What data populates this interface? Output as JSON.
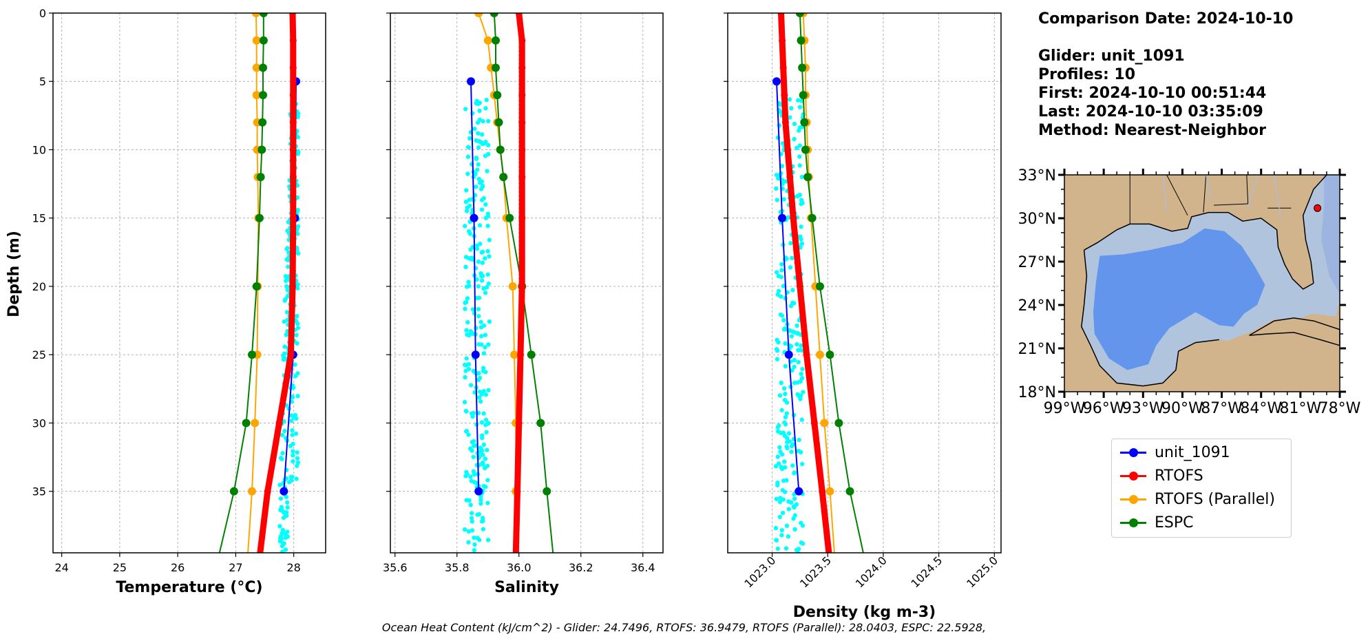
{
  "info": {
    "comparison_date": "Comparison Date: 2024-10-10",
    "glider": "Glider: unit_1091",
    "profiles": "Profiles: 10",
    "first": "First: 2024-10-10 00:51:44",
    "last": "Last: 2024-10-10 03:35:09",
    "method": "Method: Nearest-Neighbor"
  },
  "footer": "Ocean Heat Content (kJ/cm^2) - Glider: 24.7496,  RTOFS: 36.9479,  RTOFS (Parallel): 28.0403,  ESPC: 22.5928,",
  "legend": [
    {
      "label": "unit_1091",
      "color": "#0000ff"
    },
    {
      "label": "RTOFS",
      "color": "#ff0000"
    },
    {
      "label": "RTOFS (Parallel)",
      "color": "#ffa500"
    },
    {
      "label": "ESPC",
      "color": "#008000"
    }
  ],
  "map": {
    "lat_labels": [
      "33°N",
      "30°N",
      "27°N",
      "24°N",
      "21°N",
      "18°N"
    ],
    "lon_labels": [
      "99°W",
      "96°W",
      "93°W",
      "90°W",
      "87°W",
      "84°W",
      "81°W",
      "78°W"
    ],
    "land_color": "#d2b48c",
    "shelf_color": "#b0c4de",
    "deep_color": "#6495ed",
    "glider_location": {
      "lon": -79.7,
      "lat": 30.7
    }
  },
  "chart_data": [
    {
      "type": "line",
      "xlabel": "Temperature (°C)",
      "ylabel": "Depth (m)",
      "xlim": [
        23.85,
        28.55
      ],
      "ylim": [
        39.5,
        0
      ],
      "xticks": [
        24,
        25,
        26,
        27,
        28
      ],
      "yticks": [
        0,
        5,
        10,
        15,
        20,
        25,
        30,
        35
      ],
      "grid": true,
      "series": [
        {
          "name": "RTOFS",
          "style": "thick",
          "depth": [
            0,
            2,
            4,
            6,
            8,
            10,
            12,
            15,
            20,
            25,
            30,
            35,
            39.5
          ],
          "values": [
            27.98,
            27.99,
            27.99,
            27.99,
            27.99,
            27.99,
            27.99,
            27.99,
            27.98,
            27.95,
            27.75,
            27.55,
            27.42
          ]
        },
        {
          "name": "RTOFS (Parallel)",
          "depth": [
            0,
            2,
            4,
            6,
            8,
            10,
            12,
            15,
            20,
            25,
            30,
            35,
            39.5
          ],
          "values": [
            27.35,
            27.36,
            27.36,
            27.36,
            27.37,
            27.37,
            27.38,
            27.39,
            27.38,
            27.37,
            27.33,
            27.28,
            27.21
          ]
        },
        {
          "name": "ESPC",
          "depth": [
            0,
            2,
            4,
            6,
            8,
            10,
            12,
            15,
            20,
            25,
            30,
            35,
            39.5
          ],
          "values": [
            27.48,
            27.48,
            27.47,
            27.47,
            27.46,
            27.45,
            27.43,
            27.41,
            27.36,
            27.28,
            27.18,
            26.97,
            26.72
          ]
        },
        {
          "name": "unit_1091",
          "depth": [
            5,
            15,
            25,
            35
          ],
          "values": [
            28.04,
            28.02,
            27.99,
            27.83
          ]
        }
      ],
      "scatter": {
        "name": "glider raw",
        "color": "#00ffff",
        "x_range": [
          27.75,
          28.08
        ],
        "depth_range": [
          6.3,
          39.5
        ]
      }
    },
    {
      "type": "line",
      "xlabel": "Salinity",
      "ylabel": "",
      "xlim": [
        35.585,
        36.465
      ],
      "ylim": [
        39.5,
        0
      ],
      "xticks": [
        35.6,
        35.8,
        36.0,
        36.2,
        36.4
      ],
      "yticks": [
        0,
        5,
        10,
        15,
        20,
        25,
        30,
        35
      ],
      "grid": true,
      "series": [
        {
          "name": "RTOFS",
          "style": "thick",
          "depth": [
            0,
            2,
            4,
            6,
            8,
            10,
            12,
            15,
            20,
            25,
            30,
            35,
            39.5
          ],
          "values": [
            36.0,
            36.01,
            36.01,
            36.01,
            36.01,
            36.01,
            36.01,
            36.01,
            36.01,
            36.005,
            36.0,
            35.995,
            35.99
          ]
        },
        {
          "name": "RTOFS (Parallel)",
          "depth": [
            0,
            2,
            4,
            6,
            8,
            10,
            12,
            15,
            20,
            25,
            30,
            35,
            39.5
          ],
          "values": [
            35.87,
            35.9,
            35.91,
            35.92,
            35.93,
            35.94,
            35.95,
            35.96,
            35.98,
            35.985,
            35.99,
            35.99,
            35.985
          ]
        },
        {
          "name": "ESPC",
          "depth": [
            0,
            2,
            4,
            6,
            8,
            10,
            12,
            15,
            20,
            25,
            30,
            35,
            39.5
          ],
          "values": [
            35.92,
            35.925,
            35.925,
            35.93,
            35.935,
            35.94,
            35.95,
            35.97,
            36.01,
            36.04,
            36.07,
            36.09,
            36.11
          ]
        },
        {
          "name": "unit_1091",
          "depth": [
            5,
            15,
            25,
            35
          ],
          "values": [
            35.845,
            35.855,
            35.86,
            35.87
          ]
        }
      ],
      "scatter": {
        "name": "glider raw",
        "color": "#00ffff",
        "x_range": [
          35.825,
          35.905
        ],
        "depth_range": [
          6.3,
          39.5
        ]
      }
    },
    {
      "type": "line",
      "xlabel": "Density (kg m-3)",
      "ylabel": "",
      "xlim": [
        1022.6,
        1025.06
      ],
      "ylim": [
        39.5,
        0
      ],
      "xticks": [
        1023.0,
        1023.5,
        1024.0,
        1024.5,
        1025.0
      ],
      "yticks": [
        0,
        5,
        10,
        15,
        20,
        25,
        30,
        35
      ],
      "grid": true,
      "series": [
        {
          "name": "RTOFS",
          "style": "thick",
          "depth": [
            0,
            2,
            4,
            6,
            8,
            10,
            12,
            15,
            20,
            25,
            30,
            35,
            39.5
          ],
          "values": [
            1023.08,
            1023.09,
            1023.1,
            1023.11,
            1023.12,
            1023.14,
            1023.16,
            1023.19,
            1023.25,
            1023.31,
            1023.38,
            1023.45,
            1023.51
          ]
        },
        {
          "name": "RTOFS (Parallel)",
          "depth": [
            0,
            2,
            4,
            6,
            8,
            10,
            12,
            15,
            20,
            25,
            30,
            35,
            39.5
          ],
          "values": [
            1023.28,
            1023.29,
            1023.3,
            1023.3,
            1023.31,
            1023.32,
            1023.33,
            1023.35,
            1023.39,
            1023.43,
            1023.47,
            1023.52,
            1023.56
          ]
        },
        {
          "name": "ESPC",
          "depth": [
            0,
            2,
            4,
            6,
            8,
            10,
            12,
            15,
            20,
            25,
            30,
            35,
            39.5
          ],
          "values": [
            1023.25,
            1023.26,
            1023.27,
            1023.28,
            1023.29,
            1023.3,
            1023.32,
            1023.36,
            1023.43,
            1023.52,
            1023.6,
            1023.7,
            1023.82
          ]
        },
        {
          "name": "unit_1091",
          "depth": [
            5,
            15,
            25,
            35
          ],
          "values": [
            1023.04,
            1023.09,
            1023.15,
            1023.24
          ]
        }
      ],
      "scatter": {
        "name": "glider raw",
        "color": "#00ffff",
        "x_range": [
          1023.03,
          1023.28
        ],
        "depth_range": [
          6.3,
          39.5
        ]
      }
    }
  ]
}
